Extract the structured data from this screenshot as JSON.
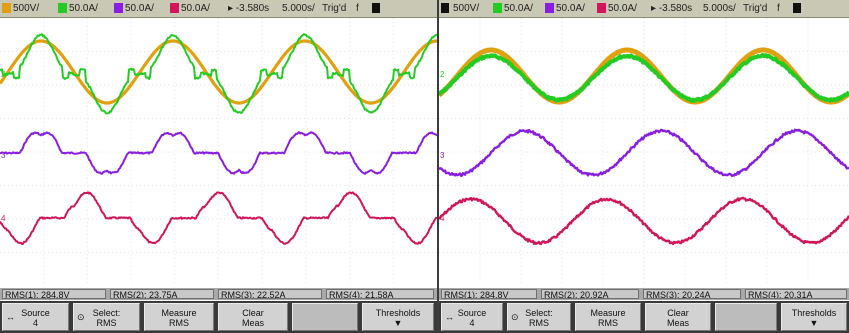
{
  "colors": {
    "ch1": "#e0a010",
    "ch2": "#22cc22",
    "ch3": "#8a1ee0",
    "ch4": "#d0155a",
    "grid": "#e6e6e6"
  },
  "left": {
    "status": {
      "ch1_scale": "500V/",
      "ch2_scale": "50.0A/",
      "ch3_scale": "50.0A/",
      "ch4_scale": "50.0A/",
      "delay": "-3.580s",
      "timebase": "5.000s/",
      "trig": "Trig'd",
      "trig_extra": "f"
    },
    "marker_labels": {
      "ch1": "1",
      "ch2": "2",
      "ch3": "3",
      "ch4": "4"
    },
    "measurements": [
      "RMS(1): 284.8V",
      "RMS(2): 23.75A",
      "RMS(3): 22.52A",
      "RMS(4): 21.58A"
    ],
    "softkeys": [
      {
        "name": "source",
        "l1": "Source",
        "l2": "4",
        "icon": "↔"
      },
      {
        "name": "select-rms",
        "l1": "Select:",
        "l2": "RMS",
        "icon": "⊙"
      },
      {
        "name": "measure-rms",
        "l1": "Measure",
        "l2": "RMS",
        "icon": ""
      },
      {
        "name": "clear-meas",
        "l1": "Clear",
        "l2": "Meas",
        "icon": ""
      },
      {
        "name": "blank",
        "l1": "",
        "l2": "",
        "icon": ""
      },
      {
        "name": "thresholds",
        "l1": "Thresholds",
        "l2": "▼",
        "icon": ""
      }
    ]
  },
  "right": {
    "status": {
      "ch1_scale": "500V/",
      "ch2_scale": "50.0A/",
      "ch3_scale": "50.0A/",
      "ch4_scale": "50.0A/",
      "delay": "-3.580s",
      "timebase": "5.000s/",
      "trig": "Trig'd",
      "trig_extra": "f"
    },
    "marker_labels": {
      "ch1": "1",
      "ch2": "2",
      "ch3": "3",
      "ch4": "4"
    },
    "measurements": [
      "RMS(1): 284.8V",
      "RMS(2): 20.92A",
      "RMS(3): 20.24A",
      "RMS(4): 20.31A"
    ],
    "softkeys": [
      {
        "name": "source",
        "l1": "Source",
        "l2": "4",
        "icon": "↔"
      },
      {
        "name": "select-rms",
        "l1": "Select:",
        "l2": "RMS",
        "icon": "⊙"
      },
      {
        "name": "measure-rms",
        "l1": "Measure",
        "l2": "RMS",
        "icon": ""
      },
      {
        "name": "clear-meas",
        "l1": "Clear",
        "l2": "Meas",
        "icon": ""
      },
      {
        "name": "blank",
        "l1": "",
        "l2": "",
        "icon": ""
      },
      {
        "name": "thresholds",
        "l1": "Thresholds",
        "l2": "▼",
        "icon": ""
      }
    ]
  }
}
